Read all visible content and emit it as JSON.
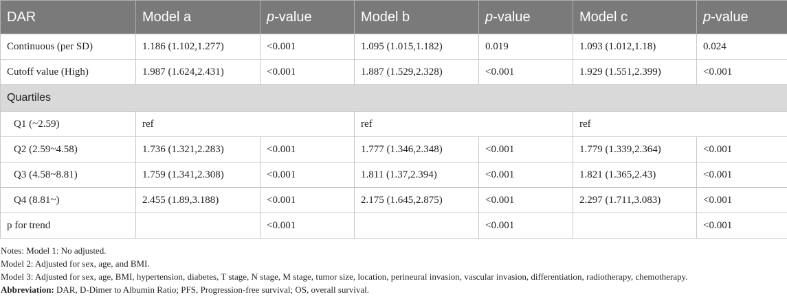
{
  "header": {
    "col0": "DAR",
    "col1": "Model a",
    "col2_italic": "p",
    "col2_rest": "-value",
    "col3": "Model b",
    "col4_italic": "p",
    "col4_rest": "-value",
    "col5": "Model c",
    "col6_italic": "p",
    "col6_rest": "-value"
  },
  "rows": {
    "continuous": [
      "Continuous (per SD)",
      "1.186 (1.102,1.277)",
      "<0.001",
      "1.095 (1.015,1.182)",
      "0.019",
      "1.093 (1.012,1.18)",
      "0.024"
    ],
    "cutoff": [
      "Cutoff value (High)",
      "1.987 (1.624,2.431)",
      "<0.001",
      "1.887 (1.529,2.328)",
      "<0.001",
      "1.929 (1.551,2.399)",
      "<0.001"
    ],
    "section": "Quartiles",
    "q1": [
      "Q1 (~2.59)",
      "ref",
      "ref",
      "ref"
    ],
    "q2": [
      "Q2 (2.59~4.58)",
      "1.736 (1.321,2.283)",
      "<0.001",
      "1.777 (1.346,2.348)",
      "<0.001",
      "1.779 (1.339,2.364)",
      "<0.001"
    ],
    "q3": [
      "Q3 (4.58~8.81)",
      "1.759 (1.341,2.308)",
      "<0.001",
      "1.811 (1.37,2.394)",
      "<0.001",
      "1.821 (1.365,2.43)",
      "<0.001"
    ],
    "q4": [
      "Q4 (8.81~)",
      "2.455 (1.89,3.188)",
      "<0.001",
      "2.175 (1.645,2.875)",
      "<0.001",
      "2.297 (1.711,3.083)",
      "<0.001"
    ],
    "trend": [
      "p for trend",
      "",
      "<0.001",
      "",
      "<0.001",
      "",
      "<0.001"
    ]
  },
  "notes": {
    "line1": "Notes: Model 1: No adjusted.",
    "line2": "Model 2: Adjusted for sex, age, and BMI.",
    "line3": "Model 3: Adjusted for sex, age, BMI, hypertension, diabetes, T stage, N stage, M stage, tumor size, location, perineural invasion, vascular invasion, differentiation, radiotherapy, chemotherapy.",
    "abbr_label": "Abbreviation:",
    "abbr_text": " DAR, D-Dimer to Albumin Ratio; PFS, Progression-free survival; OS, overall survival."
  }
}
